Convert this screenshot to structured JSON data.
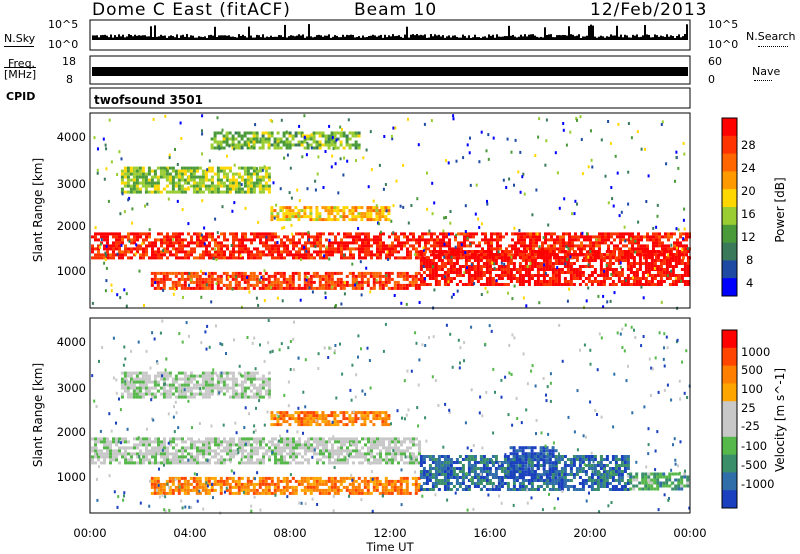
{
  "header": {
    "title": "Dome C East (fitACF)",
    "beam": "Beam 10",
    "date": "12/Feb/2013"
  },
  "panels": {
    "nsky_label": "N.Sky",
    "nsky_ticks": [
      "10^5",
      "10^0"
    ],
    "nsearch_label": "N.Search",
    "nsearch_ticks": [
      "10^5",
      "10^0"
    ],
    "freq_label": "Freq.",
    "freq_unit": "[MHz]",
    "freq_ticks": [
      "18",
      "8"
    ],
    "nave_label": "Nave",
    "nave_ticks": [
      "60",
      "0"
    ],
    "cpid_label": "CPID",
    "cpid_value": "twofsound 3501"
  },
  "chart_data": [
    {
      "type": "heatmap",
      "name": "power",
      "ylabel": "Slant Range [km]",
      "yticks": [
        "4000",
        "3000",
        "2000",
        "1000"
      ],
      "ylim": [
        200,
        4600
      ],
      "colorbar_label": "Power [dB]",
      "colorbar_ticks": [
        "28",
        "24",
        "20",
        "16",
        "12",
        "8",
        "4"
      ],
      "colorbar_colors": [
        "#0000ff",
        "#1f4aa3",
        "#3a7a5a",
        "#4a9a3a",
        "#9acd32",
        "#ffd700",
        "#ff9900",
        "#ff6600",
        "#ff3300",
        "#ff0000"
      ],
      "bands": [
        {
          "x0": 0.0,
          "x1": 1.0,
          "y0": 1300,
          "y1": 1900,
          "level": 0.9
        },
        {
          "x0": 0.1,
          "x1": 0.55,
          "y0": 600,
          "y1": 1000,
          "level": 0.85
        },
        {
          "x0": 0.55,
          "x1": 1.0,
          "y0": 700,
          "y1": 1500,
          "level": 0.95
        },
        {
          "x0": 0.05,
          "x1": 0.3,
          "y0": 2800,
          "y1": 3400,
          "level": 0.45
        },
        {
          "x0": 0.2,
          "x1": 0.45,
          "y0": 3800,
          "y1": 4200,
          "level": 0.4
        },
        {
          "x0": 0.3,
          "x1": 0.5,
          "y0": 2200,
          "y1": 2500,
          "level": 0.6
        }
      ]
    },
    {
      "type": "heatmap",
      "name": "velocity",
      "xlabel": "Time UT",
      "ylabel": "Slant Range [km]",
      "yticks": [
        "4000",
        "3000",
        "2000",
        "1000"
      ],
      "xticks": [
        "00:00",
        "04:00",
        "08:00",
        "12:00",
        "16:00",
        "20:00",
        "00:00"
      ],
      "ylim": [
        200,
        4600
      ],
      "colorbar_label": "Velocity [m s^-1]",
      "colorbar_ticks": [
        "1000",
        "500",
        "100",
        "25",
        "-25",
        "-100",
        "-500",
        "-1000"
      ],
      "colorbar_colors": [
        "#1a3fbf",
        "#2f6ea8",
        "#3a8f6a",
        "#56b84a",
        "#c8c8c8",
        "#c8c8c8",
        "#ffa500",
        "#ff8000",
        "#ff4500",
        "#ff0000"
      ],
      "bands": [
        {
          "x0": 0.0,
          "x1": 0.55,
          "y0": 1300,
          "y1": 1900,
          "level": 0.45
        },
        {
          "x0": 0.1,
          "x1": 0.55,
          "y0": 600,
          "y1": 1000,
          "level": 0.75
        },
        {
          "x0": 0.55,
          "x1": 0.9,
          "y0": 700,
          "y1": 1500,
          "level": 0.15
        },
        {
          "x0": 0.7,
          "x1": 0.78,
          "y0": 1000,
          "y1": 1700,
          "level": 0.05
        },
        {
          "x0": 0.9,
          "x1": 1.0,
          "y0": 700,
          "y1": 1100,
          "level": 0.3
        },
        {
          "x0": 0.05,
          "x1": 0.3,
          "y0": 2800,
          "y1": 3400,
          "level": 0.45
        },
        {
          "x0": 0.3,
          "x1": 0.5,
          "y0": 2200,
          "y1": 2500,
          "level": 0.75
        }
      ]
    }
  ]
}
